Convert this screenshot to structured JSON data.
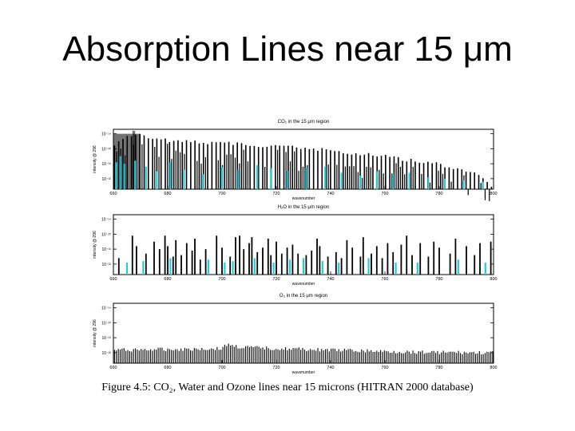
{
  "slide": {
    "title": "Absorption Lines near 15 μm",
    "caption": "Figure 4.5: CO₂, Water and Ozone lines near 15 microns (HITRAN 2000 database)"
  },
  "colors": {
    "line_primary": "#000000",
    "line_secondary": "#22ccdd",
    "background": "#ffffff"
  },
  "chart_data": [
    {
      "type": "bar",
      "title": "CO₂ in the 15 μm region",
      "xlabel": "wavenumber",
      "ylabel": "intensity @ 296",
      "xlim": [
        660,
        800
      ],
      "x_ticks": [
        660,
        680,
        700,
        720,
        740,
        760,
        780,
        800
      ],
      "y_scale": "log",
      "y_ticks": [
        "10⁻¹⁹",
        "10⁻²⁰",
        "10⁻²¹",
        "10⁻²²"
      ],
      "ylim_exp": [
        -22.7,
        -18.7
      ],
      "line_spacing": 1.56,
      "envelope": [
        [
          660,
          -19.6
        ],
        [
          667,
          -18.9
        ],
        [
          680,
          -19.3
        ],
        [
          700,
          -19.5
        ],
        [
          720,
          -19.7
        ],
        [
          740,
          -20.0
        ],
        [
          760,
          -20.4
        ],
        [
          780,
          -20.9
        ],
        [
          795,
          -21.6
        ],
        [
          800,
          -22.6
        ]
      ],
      "bands": [
        [
          660,
          670,
          -19.0
        ],
        [
          667,
          668,
          -18.8
        ]
      ],
      "secondary": [
        [
          661,
          -20.9
        ],
        [
          662.5,
          -20.5
        ],
        [
          664,
          -21.0
        ],
        [
          668,
          -20.8
        ],
        [
          672,
          -21.2
        ],
        [
          676,
          -21.5
        ],
        [
          681,
          -20.9
        ],
        [
          686,
          -21.4
        ],
        [
          693,
          -21.7
        ],
        [
          700,
          -21.2
        ],
        [
          706,
          -21.4
        ],
        [
          713,
          -21.1
        ],
        [
          718,
          -21.3
        ],
        [
          724,
          -21.5
        ],
        [
          731,
          -21.3
        ],
        [
          738,
          -21.2
        ],
        [
          744,
          -21.6
        ],
        [
          751,
          -21.8
        ],
        [
          757,
          -21.5
        ],
        [
          763,
          -21.7
        ],
        [
          769,
          -21.6
        ],
        [
          776,
          -21.9
        ],
        [
          782,
          -22.0
        ],
        [
          789,
          -22.1
        ],
        [
          796,
          -22.2
        ]
      ]
    },
    {
      "type": "bar",
      "title": "H₂O in the 15 μm region",
      "xlabel": "wavenumber",
      "ylabel": "intensity @ 296",
      "xlim": [
        660,
        800
      ],
      "x_ticks": [
        660,
        680,
        700,
        720,
        740,
        760,
        780,
        800
      ],
      "y_scale": "log",
      "y_ticks": [
        "10⁻¹⁹",
        "10⁻²⁰",
        "10⁻²¹",
        "10⁻²²"
      ],
      "ylim_exp": [
        -22.7,
        -18.7
      ],
      "lines": [
        [
          662,
          -21.6
        ],
        [
          667,
          -20.1
        ],
        [
          668.5,
          -20.8
        ],
        [
          672,
          -21.3
        ],
        [
          675,
          -20.5
        ],
        [
          677,
          -21.0
        ],
        [
          679,
          -20.1
        ],
        [
          680,
          -20.8
        ],
        [
          682,
          -21.5
        ],
        [
          683,
          -20.4
        ],
        [
          685,
          -21.4
        ],
        [
          687,
          -20.6
        ],
        [
          689,
          -21.1
        ],
        [
          690,
          -20.3
        ],
        [
          692,
          -21.7
        ],
        [
          694,
          -21.0
        ],
        [
          698,
          -20.1
        ],
        [
          700,
          -20.9
        ],
        [
          703,
          -21.5
        ],
        [
          705,
          -20.2
        ],
        [
          706.5,
          -20.1
        ],
        [
          708,
          -21.0
        ],
        [
          710,
          -20.6
        ],
        [
          711,
          -20.2
        ],
        [
          713,
          -21.2
        ],
        [
          715,
          -20.9
        ],
        [
          717,
          -20.3
        ],
        [
          718,
          -21.4
        ],
        [
          720,
          -20.5
        ],
        [
          722,
          -21.3
        ],
        [
          724,
          -20.9
        ],
        [
          726,
          -20.7
        ],
        [
          728,
          -21.3
        ],
        [
          731,
          -21.4
        ],
        [
          733,
          -21.1
        ],
        [
          735,
          -20.3
        ],
        [
          736,
          -20.8
        ],
        [
          739,
          -21.5
        ],
        [
          742,
          -21.2
        ],
        [
          744,
          -21.6
        ],
        [
          746,
          -20.4
        ],
        [
          748,
          -20.9
        ],
        [
          751,
          -21.5
        ],
        [
          752,
          -20.2
        ],
        [
          755,
          -21.3
        ],
        [
          757,
          -20.8
        ],
        [
          759,
          -21.6
        ],
        [
          761,
          -20.6
        ],
        [
          763,
          -21.2
        ],
        [
          766,
          -20.7
        ],
        [
          768,
          -20.1
        ],
        [
          770,
          -21.4
        ],
        [
          773,
          -20.6
        ],
        [
          776,
          -21.5
        ],
        [
          778,
          -20.5
        ],
        [
          780,
          -20.9
        ],
        [
          784,
          -21.3
        ],
        [
          786,
          -20.3
        ],
        [
          790,
          -20.8
        ],
        [
          793,
          -21.4
        ],
        [
          795,
          -20.6
        ],
        [
          799,
          -20.5
        ]
      ],
      "secondary": [
        [
          665,
          -21.9
        ],
        [
          671,
          -21.8
        ],
        [
          681,
          -21.6
        ],
        [
          695,
          -21.7
        ],
        [
          701,
          -21.9
        ],
        [
          704,
          -21.8
        ],
        [
          712,
          -21.6
        ],
        [
          719,
          -21.9
        ],
        [
          725,
          -21.7
        ],
        [
          730,
          -21.6
        ],
        [
          737,
          -21.8
        ],
        [
          743,
          -21.9
        ],
        [
          754,
          -21.6
        ],
        [
          764,
          -21.9
        ],
        [
          772,
          -21.9
        ],
        [
          787,
          -21.7
        ],
        [
          797,
          -21.9
        ]
      ]
    },
    {
      "type": "bar",
      "title": "O₃ in the 15 μm region",
      "xlabel": "wavenumber",
      "ylabel": "intensity @ 296",
      "xlim": [
        660,
        800
      ],
      "x_ticks": [
        660,
        680,
        700,
        720,
        740,
        760,
        780,
        800
      ],
      "y_scale": "log",
      "y_ticks": [
        "10⁻¹⁹",
        "10⁻²⁰",
        "10⁻²¹",
        "10⁻²²"
      ],
      "ylim_exp": [
        -22.7,
        -18.7
      ],
      "line_spacing": 0.7,
      "envelope": [
        [
          660,
          -21.7
        ],
        [
          700,
          -21.6
        ],
        [
          702,
          -21.3
        ],
        [
          706,
          -21.5
        ],
        [
          720,
          -21.6
        ],
        [
          760,
          -21.8
        ],
        [
          800,
          -21.9
        ]
      ]
    }
  ]
}
